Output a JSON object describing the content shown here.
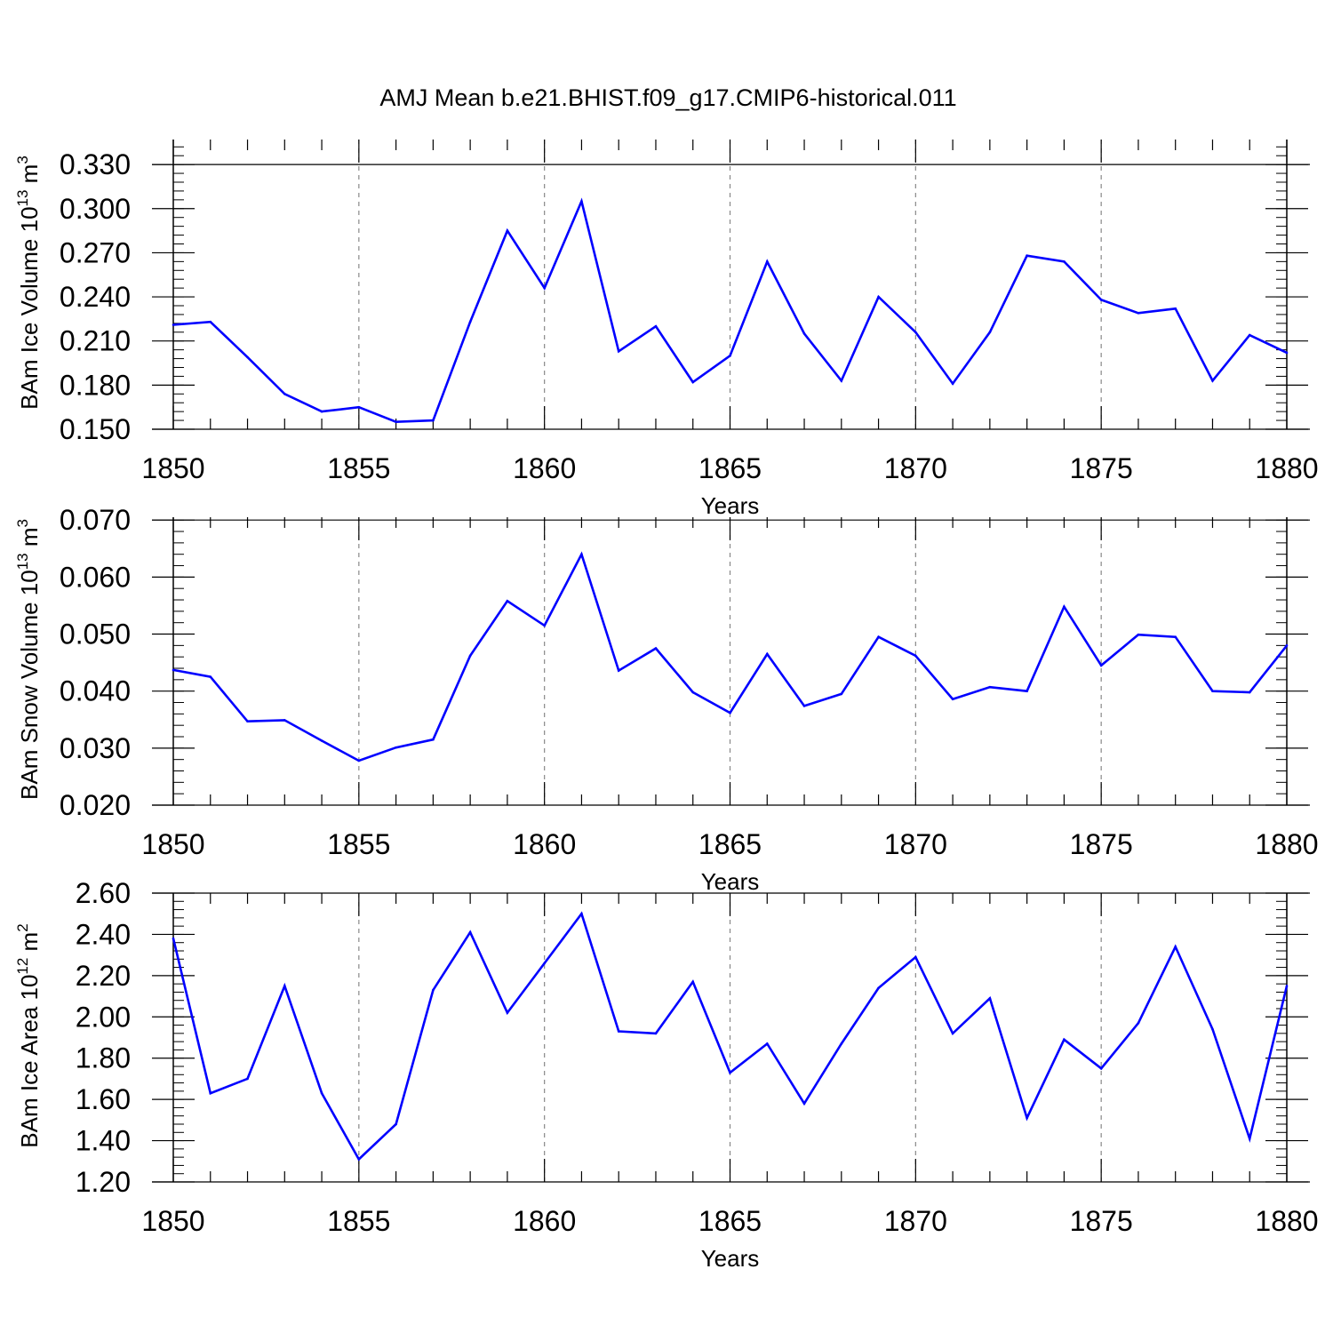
{
  "title": "AMJ Mean b.e21.BHIST.f09_g17.CMIP6-historical.011",
  "colors": {
    "line": "#0000ff",
    "frame": "#000000",
    "grid": "#888888"
  },
  "chart_data": [
    {
      "type": "line",
      "xlabel": "Years",
      "ylabel": "BAm Ice Volume 10",
      "ylabel_exp": "13",
      "ylabel_unit": " m",
      "ylabel_unit_exp": "3",
      "xlim": [
        1850,
        1880
      ],
      "ylim": [
        0.15,
        0.347
      ],
      "xticks": [
        "1850",
        "1855",
        "1860",
        "1865",
        "1870",
        "1875",
        "1880"
      ],
      "yticks": [
        "0.150",
        "0.180",
        "0.210",
        "0.240",
        "0.270",
        "0.300",
        "0.330"
      ],
      "grid": "vertical dashed at major x ticks",
      "x": [
        1850,
        1851,
        1852,
        1853,
        1854,
        1855,
        1856,
        1857,
        1858,
        1859,
        1860,
        1861,
        1862,
        1863,
        1864,
        1865,
        1866,
        1867,
        1868,
        1869,
        1870,
        1871,
        1872,
        1873,
        1874,
        1875,
        1876,
        1877,
        1878,
        1879,
        1880
      ],
      "y": [
        0.221,
        0.223,
        0.199,
        0.174,
        0.162,
        0.165,
        0.155,
        0.156,
        0.223,
        0.285,
        0.246,
        0.305,
        0.203,
        0.22,
        0.182,
        0.2,
        0.264,
        0.215,
        0.183,
        0.24,
        0.216,
        0.181,
        0.216,
        0.268,
        0.264,
        0.238,
        0.229,
        0.232,
        0.183,
        0.214,
        0.202
      ]
    },
    {
      "type": "line",
      "xlabel": "Years",
      "ylabel": "BAm Snow Volume 10",
      "ylabel_exp": "13",
      "ylabel_unit": " m",
      "ylabel_unit_exp": "3",
      "xlim": [
        1850,
        1880
      ],
      "ylim": [
        0.02,
        0.0705
      ],
      "xticks": [
        "1850",
        "1855",
        "1860",
        "1865",
        "1870",
        "1875",
        "1880"
      ],
      "yticks": [
        "0.020",
        "0.030",
        "0.040",
        "0.050",
        "0.060",
        "0.070"
      ],
      "grid": "vertical dashed at major x ticks",
      "x": [
        1850,
        1851,
        1852,
        1853,
        1854,
        1855,
        1856,
        1857,
        1858,
        1859,
        1860,
        1861,
        1862,
        1863,
        1864,
        1865,
        1866,
        1867,
        1868,
        1869,
        1870,
        1871,
        1872,
        1873,
        1874,
        1875,
        1876,
        1877,
        1878,
        1879,
        1880
      ],
      "y": [
        0.0437,
        0.0425,
        0.0347,
        0.0349,
        0.0313,
        0.0278,
        0.0301,
        0.0315,
        0.0462,
        0.0558,
        0.0515,
        0.064,
        0.0436,
        0.0475,
        0.0398,
        0.0362,
        0.0465,
        0.0374,
        0.0395,
        0.0495,
        0.0462,
        0.0386,
        0.0407,
        0.04,
        0.0548,
        0.0445,
        0.0499,
        0.0495,
        0.04,
        0.0398,
        0.048
      ]
    },
    {
      "type": "line",
      "xlabel": "Years",
      "ylabel": "BAm Ice Area 10",
      "ylabel_exp": "12",
      "ylabel_unit": " m",
      "ylabel_unit_exp": "2",
      "xlim": [
        1850,
        1880
      ],
      "ylim": [
        1.2,
        2.6
      ],
      "xticks": [
        "1850",
        "1855",
        "1860",
        "1865",
        "1870",
        "1875",
        "1880"
      ],
      "yticks": [
        "1.20",
        "1.40",
        "1.60",
        "1.80",
        "2.00",
        "2.20",
        "2.40",
        "2.60"
      ],
      "grid": "vertical dashed at major x ticks",
      "x": [
        1850,
        1851,
        1852,
        1853,
        1854,
        1855,
        1856,
        1857,
        1858,
        1859,
        1860,
        1861,
        1862,
        1863,
        1864,
        1865,
        1866,
        1867,
        1868,
        1869,
        1870,
        1871,
        1872,
        1873,
        1874,
        1875,
        1876,
        1877,
        1878,
        1879,
        1880
      ],
      "y": [
        2.38,
        1.63,
        1.7,
        2.15,
        1.63,
        1.31,
        1.48,
        2.13,
        2.41,
        2.02,
        2.26,
        2.5,
        1.93,
        1.92,
        2.17,
        1.73,
        1.87,
        1.58,
        1.87,
        2.14,
        2.29,
        1.92,
        2.09,
        1.51,
        1.89,
        1.75,
        1.97,
        2.34,
        1.94,
        1.41,
        2.15
      ]
    }
  ]
}
